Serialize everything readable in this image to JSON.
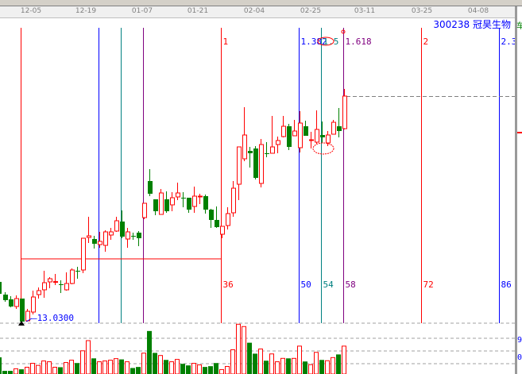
{
  "header": {
    "stock_code": "300238",
    "stock_name": "冠昊生物",
    "side_char": "车"
  },
  "chart_data": {
    "type": "candlestick",
    "x_tick_labels": [
      "12-05",
      "12-19",
      "01-07",
      "01-21",
      "02-04",
      "02-25",
      "03-11",
      "03-25",
      "04-08"
    ],
    "low_marker_label": "—13.0300",
    "candles_ohlc": [
      [
        14.78,
        14.93,
        14.33,
        14.43
      ],
      [
        14.48,
        14.68,
        13.98,
        14.03
      ],
      [
        14.03,
        14.73,
        13.88,
        14.53
      ],
      [
        14.53,
        14.53,
        13.03,
        13.08
      ],
      [
        13.13,
        13.88,
        13.08,
        13.73
      ],
      [
        13.68,
        15.03,
        13.53,
        14.63
      ],
      [
        14.78,
        15.23,
        14.53,
        15.03
      ],
      [
        15.08,
        16.28,
        14.58,
        15.53
      ],
      [
        15.58,
        15.88,
        15.18,
        15.78
      ],
      [
        15.58,
        16.08,
        15.38,
        15.6
      ],
      [
        15.43,
        15.68,
        14.88,
        15.38
      ],
      [
        15.08,
        16.18,
        15.03,
        15.48
      ],
      [
        15.48,
        16.43,
        15.43,
        16.33
      ],
      [
        16.28,
        16.53,
        15.78,
        16.25
      ],
      [
        16.33,
        18.33,
        16.13,
        18.33
      ],
      [
        18.38,
        19.68,
        18.03,
        18.48
      ],
      [
        18.28,
        18.48,
        17.68,
        17.98
      ],
      [
        17.93,
        18.73,
        17.73,
        18.13
      ],
      [
        17.88,
        18.83,
        17.48,
        18.73
      ],
      [
        18.53,
        18.98,
        18.23,
        18.73
      ],
      [
        18.78,
        19.68,
        18.73,
        19.43
      ],
      [
        19.38,
        20.08,
        18.33,
        18.43
      ],
      [
        18.28,
        18.98,
        17.73,
        18.73
      ],
      [
        18.48,
        18.68,
        18.23,
        18.45
      ],
      [
        18.68,
        18.78,
        17.83,
        18.33
      ],
      [
        19.63,
        20.53,
        19.53,
        20.53
      ],
      [
        21.93,
        22.68,
        20.98,
        21.13
      ],
      [
        20.78,
        20.78,
        19.78,
        20.03
      ],
      [
        19.83,
        21.43,
        19.83,
        21.18
      ],
      [
        20.78,
        21.28,
        19.93,
        20.03
      ],
      [
        20.43,
        21.23,
        20.03,
        20.88
      ],
      [
        20.93,
        21.83,
        20.73,
        21.18
      ],
      [
        20.88,
        21.23,
        20.28,
        20.85
      ],
      [
        20.88,
        20.88,
        19.93,
        20.13
      ],
      [
        20.33,
        21.58,
        19.93,
        20.98
      ],
      [
        20.95,
        21.13,
        20.48,
        20.98
      ],
      [
        20.98,
        21.08,
        19.88,
        20.13
      ],
      [
        20.13,
        20.18,
        18.98,
        19.48
      ],
      [
        19.48,
        20.33,
        18.98,
        19.03
      ],
      [
        18.58,
        19.08,
        18.33,
        19.08
      ],
      [
        19.13,
        20.28,
        18.88,
        19.88
      ],
      [
        19.93,
        21.93,
        19.68,
        21.48
      ],
      [
        21.73,
        24.08,
        20.73,
        24.08
      ],
      [
        23.33,
        26.58,
        23.18,
        24.83
      ],
      [
        23.83,
        24.08,
        22.78,
        23.68
      ],
      [
        23.98,
        24.13,
        22.03,
        22.13
      ],
      [
        21.78,
        24.58,
        21.53,
        24.23
      ],
      [
        23.68,
        24.38,
        23.43,
        23.65
      ],
      [
        23.68,
        26.03,
        23.68,
        24.08
      ],
      [
        24.23,
        24.73,
        23.68,
        24.48
      ],
      [
        24.73,
        26.03,
        24.68,
        25.38
      ],
      [
        25.38,
        25.53,
        23.88,
        24.08
      ],
      [
        24.78,
        25.78,
        24.78,
        25.08
      ],
      [
        24.03,
        26.33,
        23.73,
        25.58
      ],
      [
        25.38,
        25.73,
        24.78,
        24.78
      ],
      [
        24.5,
        25.03,
        23.98,
        24.53
      ],
      [
        24.38,
        26.38,
        24.28,
        25.18
      ],
      [
        24.83,
        25.68,
        24.33,
        24.68
      ],
      [
        24.33,
        25.08,
        24.13,
        24.83
      ],
      [
        24.88,
        25.78,
        24.88,
        25.63
      ],
      [
        25.38,
        26.53,
        24.68,
        25.08
      ],
      [
        25.23,
        27.73,
        25.18,
        27.28
      ]
    ],
    "volumes": [
      12,
      12,
      20,
      18,
      26,
      41,
      33,
      50,
      47,
      26,
      26,
      44,
      53,
      42,
      89,
      128,
      60,
      47,
      50,
      53,
      59,
      56,
      47,
      23,
      27,
      80,
      165,
      81,
      71,
      54,
      47,
      56,
      39,
      33,
      41,
      35,
      27,
      30,
      42,
      17,
      29,
      93,
      191,
      182,
      120,
      78,
      96,
      51,
      77,
      47,
      60,
      60,
      60,
      107,
      48,
      36,
      83,
      54,
      51,
      63,
      75,
      107
    ],
    "fib_time_lines": [
      {
        "top_label": "",
        "bottom_label": "",
        "color": "#ff0000",
        "candle": 3
      },
      {
        "top_label": "",
        "bottom_label": "",
        "color": "#0000ff",
        "candle": 17
      },
      {
        "top_label": "",
        "bottom_label": "",
        "color": "#008080",
        "candle": 21
      },
      {
        "top_label": "",
        "bottom_label": "",
        "color": "#800080",
        "candle": 25
      },
      {
        "top_label": "1",
        "bottom_label": "36",
        "color": "#ff0000",
        "candle": 39
      },
      {
        "top_label": "1.382",
        "bottom_label": "50",
        "color": "#0000ff",
        "candle": 53
      },
      {
        "top_label": "1.5",
        "bottom_label": "54",
        "color": "#008080",
        "candle": 57
      },
      {
        "top_label": "1.618",
        "bottom_label": "58",
        "color": "#800080",
        "candle": 61
      },
      {
        "top_label": "2",
        "bottom_label": "72",
        "color": "#ff0000",
        "candle": 75
      },
      {
        "top_label": "2.3",
        "bottom_label": "86",
        "color": "#0000ff",
        "candle": 89
      }
    ],
    "horizontal_line_price": 16.03,
    "current_price_line": 27.28,
    "colors": {
      "up": "#ff0000",
      "down": "#008000",
      "grid": "#a0a0a0"
    }
  },
  "volume_axis": {
    "top": "9",
    "bottom": "0"
  }
}
